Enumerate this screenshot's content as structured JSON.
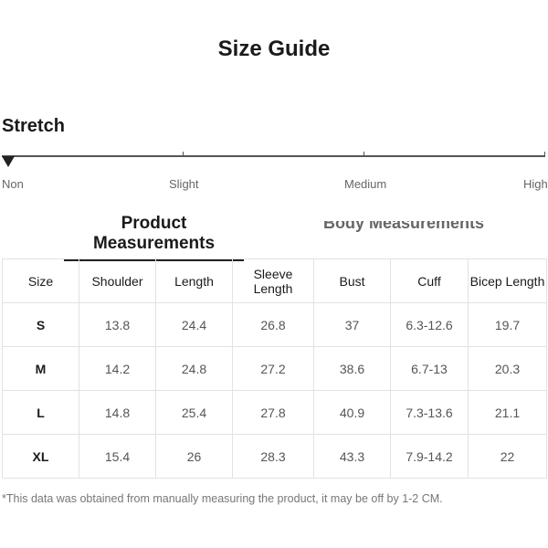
{
  "title": "Size Guide",
  "stretch": {
    "label": "Stretch",
    "levels": [
      "Non",
      "Slight",
      "Medium",
      "High"
    ],
    "selected": "Non"
  },
  "tabs": {
    "active": "Product Measurements",
    "inactive": "Body Measurements"
  },
  "table": {
    "headers": [
      "Size",
      "Shoulder",
      "Length",
      "Sleeve Length",
      "Bust",
      "Cuff",
      "Bicep Length"
    ],
    "rows": [
      [
        "S",
        "13.8",
        "24.4",
        "26.8",
        "37",
        "6.3-12.6",
        "19.7"
      ],
      [
        "M",
        "14.2",
        "24.8",
        "27.2",
        "38.6",
        "6.7-13",
        "20.3"
      ],
      [
        "L",
        "14.8",
        "25.4",
        "27.8",
        "40.9",
        "7.3-13.6",
        "21.1"
      ],
      [
        "XL",
        "15.4",
        "26",
        "28.3",
        "43.3",
        "7.9-14.2",
        "22"
      ]
    ]
  },
  "note": "*This data was obtained from manually measuring the product, it may be off by 1-2 CM."
}
